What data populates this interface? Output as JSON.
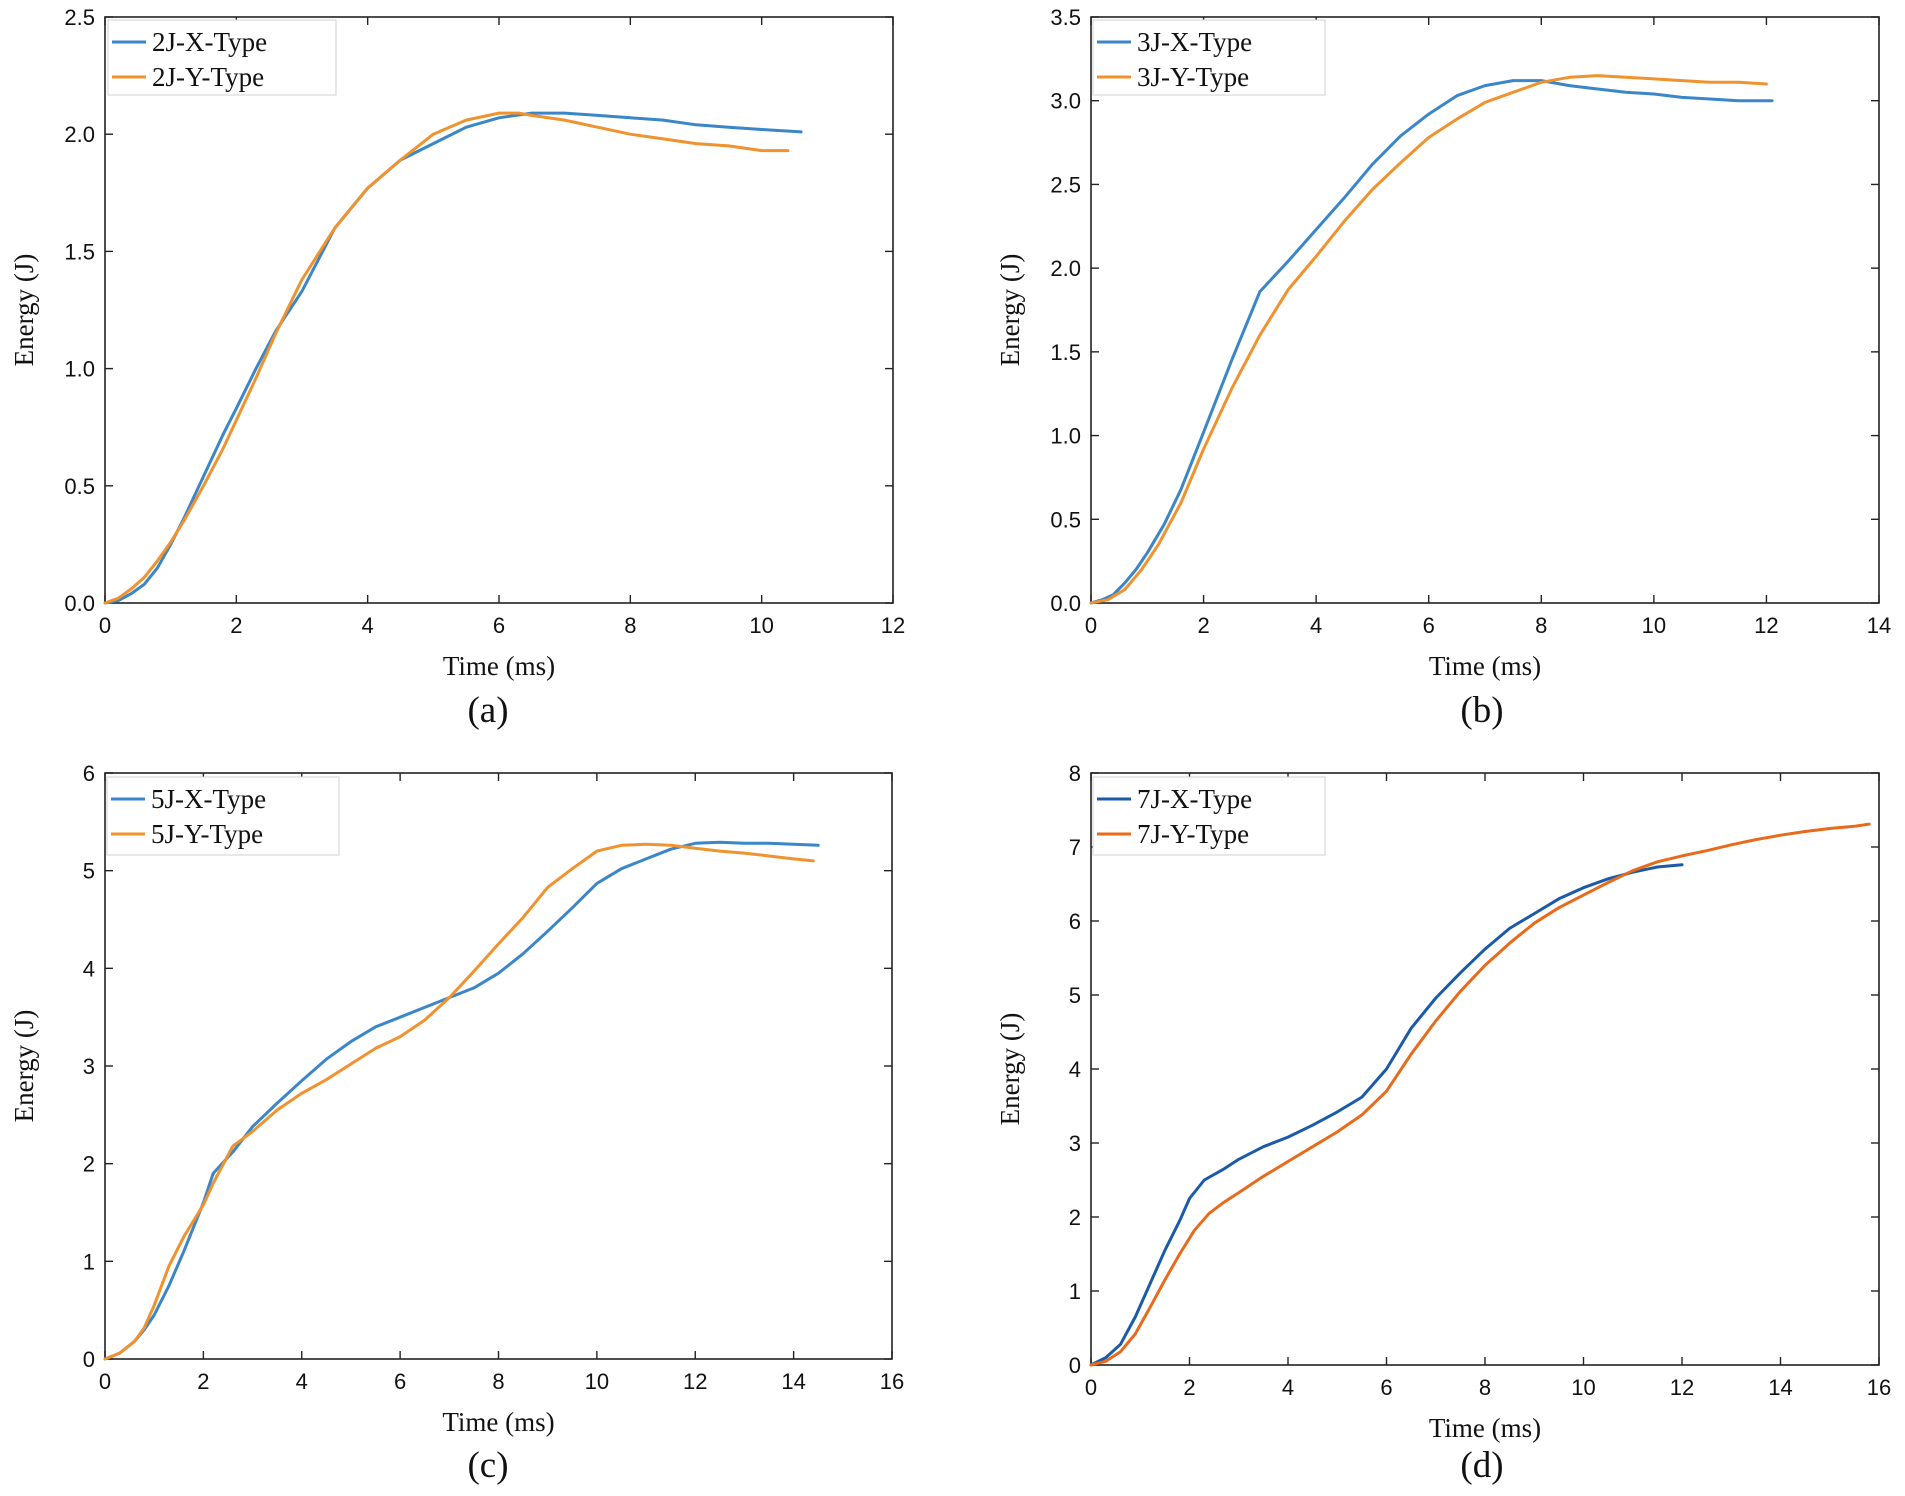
{
  "chart_data": [
    {
      "type": "line",
      "panel_label": "(a)",
      "xlabel": "Time (ms)",
      "ylabel": "Energy (J)",
      "xlim": [
        0,
        12
      ],
      "ylim": [
        0,
        2.5
      ],
      "xticks": [
        "0",
        "2",
        "4",
        "6",
        "8",
        "10",
        "12"
      ],
      "yticks": [
        "0.0",
        "0.5",
        "1.0",
        "1.5",
        "2.0",
        "2.5"
      ],
      "grid": false,
      "legend_position": "top-left",
      "series": [
        {
          "name": "2J-X-Type",
          "color": "#3a86c8",
          "x": [
            0,
            0.2,
            0.4,
            0.6,
            0.8,
            1.0,
            1.2,
            1.5,
            1.8,
            2.0,
            2.3,
            2.6,
            3.0,
            3.5,
            4.0,
            4.5,
            5.0,
            5.5,
            6.0,
            6.5,
            7.0,
            7.5,
            8.0,
            8.5,
            9.0,
            9.5,
            10.0,
            10.6
          ],
          "y": [
            0,
            0.01,
            0.04,
            0.08,
            0.15,
            0.25,
            0.36,
            0.54,
            0.72,
            0.83,
            1.0,
            1.16,
            1.33,
            1.6,
            1.77,
            1.89,
            1.96,
            2.03,
            2.07,
            2.09,
            2.09,
            2.08,
            2.07,
            2.06,
            2.04,
            2.03,
            2.02,
            2.01
          ]
        },
        {
          "name": "2J-Y-Type",
          "color": "#f0922e",
          "x": [
            0,
            0.2,
            0.4,
            0.6,
            0.8,
            1.0,
            1.2,
            1.5,
            1.8,
            2.0,
            2.3,
            2.6,
            3.0,
            3.5,
            4.0,
            4.5,
            5.0,
            5.5,
            6.0,
            6.3,
            6.5,
            7.0,
            7.5,
            8.0,
            8.5,
            9.0,
            9.5,
            10.0,
            10.4
          ],
          "y": [
            0,
            0.02,
            0.06,
            0.11,
            0.18,
            0.26,
            0.35,
            0.5,
            0.66,
            0.78,
            0.96,
            1.15,
            1.38,
            1.6,
            1.77,
            1.89,
            2.0,
            2.06,
            2.09,
            2.09,
            2.08,
            2.06,
            2.03,
            2.0,
            1.98,
            1.96,
            1.95,
            1.93,
            1.93
          ]
        }
      ]
    },
    {
      "type": "line",
      "panel_label": "(b)",
      "xlabel": "Time (ms)",
      "ylabel": "Energy (J)",
      "xlim": [
        0,
        14
      ],
      "ylim": [
        0,
        3.5
      ],
      "xticks": [
        "0",
        "2",
        "4",
        "6",
        "8",
        "10",
        "12",
        "14"
      ],
      "yticks": [
        "0.0",
        "0.5",
        "1.0",
        "1.5",
        "2.0",
        "2.5",
        "3.0",
        "3.5"
      ],
      "grid": false,
      "legend_position": "top-left",
      "series": [
        {
          "name": "3J-X-Type",
          "color": "#3a86c8",
          "x": [
            0,
            0.2,
            0.4,
            0.6,
            0.8,
            1.0,
            1.3,
            1.6,
            2.0,
            2.5,
            3.0,
            3.5,
            4.0,
            4.5,
            5.0,
            5.5,
            6.0,
            6.5,
            7.0,
            7.5,
            8.0,
            8.5,
            9.0,
            9.5,
            10.0,
            10.5,
            11.0,
            11.5,
            12.1
          ],
          "y": [
            0,
            0.02,
            0.05,
            0.12,
            0.2,
            0.3,
            0.47,
            0.68,
            1.02,
            1.45,
            1.86,
            2.04,
            2.23,
            2.42,
            2.62,
            2.79,
            2.92,
            3.03,
            3.09,
            3.12,
            3.12,
            3.09,
            3.07,
            3.05,
            3.04,
            3.02,
            3.01,
            3.0,
            3.0
          ]
        },
        {
          "name": "3J-Y-Type",
          "color": "#f0922e",
          "x": [
            0,
            0.3,
            0.6,
            0.9,
            1.2,
            1.6,
            2.0,
            2.5,
            3.0,
            3.5,
            4.0,
            4.5,
            5.0,
            5.5,
            6.0,
            6.5,
            7.0,
            7.5,
            8.0,
            8.5,
            9.0,
            9.5,
            10.0,
            10.5,
            11.0,
            11.5,
            12.0
          ],
          "y": [
            0,
            0.02,
            0.08,
            0.2,
            0.35,
            0.6,
            0.92,
            1.28,
            1.6,
            1.87,
            2.07,
            2.28,
            2.47,
            2.63,
            2.78,
            2.89,
            2.99,
            3.05,
            3.11,
            3.14,
            3.15,
            3.14,
            3.13,
            3.12,
            3.11,
            3.11,
            3.1
          ]
        }
      ]
    },
    {
      "type": "line",
      "panel_label": "(c)",
      "xlabel": "Time (ms)",
      "ylabel": "Energy (J)",
      "xlim": [
        0,
        16
      ],
      "ylim": [
        0,
        6
      ],
      "xticks": [
        "0",
        "2",
        "4",
        "6",
        "8",
        "10",
        "12",
        "14",
        "16"
      ],
      "yticks": [
        "0",
        "1",
        "2",
        "3",
        "4",
        "5",
        "6"
      ],
      "grid": false,
      "legend_position": "top-left",
      "series": [
        {
          "name": "5J-X-Type",
          "color": "#3a86c8",
          "x": [
            0,
            0.3,
            0.6,
            0.8,
            1.0,
            1.3,
            1.6,
            2.0,
            2.2,
            2.6,
            3.0,
            3.5,
            4.0,
            4.5,
            5.0,
            5.5,
            6.0,
            6.5,
            7.0,
            7.5,
            8.0,
            8.5,
            9.0,
            9.5,
            10.0,
            10.5,
            11.0,
            11.5,
            12.0,
            12.5,
            13.0,
            13.5,
            14.0,
            14.5
          ],
          "y": [
            0,
            0.06,
            0.18,
            0.3,
            0.45,
            0.75,
            1.1,
            1.6,
            1.9,
            2.12,
            2.38,
            2.62,
            2.85,
            3.07,
            3.25,
            3.4,
            3.5,
            3.6,
            3.7,
            3.8,
            3.95,
            4.15,
            4.38,
            4.62,
            4.87,
            5.02,
            5.12,
            5.22,
            5.28,
            5.29,
            5.28,
            5.28,
            5.27,
            5.26
          ]
        },
        {
          "name": "5J-Y-Type",
          "color": "#f0922e",
          "x": [
            0,
            0.3,
            0.6,
            0.8,
            1.0,
            1.3,
            1.6,
            2.0,
            2.2,
            2.6,
            3.0,
            3.5,
            4.0,
            4.5,
            5.0,
            5.5,
            6.0,
            6.5,
            7.0,
            7.5,
            8.0,
            8.5,
            9.0,
            9.5,
            10.0,
            10.5,
            11.0,
            11.5,
            12.0,
            12.5,
            13.0,
            13.5,
            14.0,
            14.4
          ],
          "y": [
            0,
            0.06,
            0.18,
            0.32,
            0.55,
            0.95,
            1.25,
            1.58,
            1.8,
            2.18,
            2.33,
            2.55,
            2.72,
            2.86,
            3.02,
            3.18,
            3.3,
            3.47,
            3.7,
            3.97,
            4.25,
            4.52,
            4.83,
            5.02,
            5.2,
            5.26,
            5.27,
            5.26,
            5.23,
            5.2,
            5.18,
            5.15,
            5.12,
            5.1
          ]
        }
      ]
    },
    {
      "type": "line",
      "panel_label": "(d)",
      "xlabel": "Time (ms)",
      "ylabel": "Energy (J)",
      "xlim": [
        0,
        16
      ],
      "ylim": [
        0,
        8
      ],
      "xticks": [
        "0",
        "2",
        "4",
        "6",
        "8",
        "10",
        "12",
        "14",
        "16"
      ],
      "yticks": [
        "0",
        "1",
        "2",
        "3",
        "4",
        "5",
        "6",
        "7",
        "8"
      ],
      "grid": false,
      "legend_position": "top-left",
      "series": [
        {
          "name": "7J-X-Type",
          "color": "#1a5aa8",
          "x": [
            0,
            0.3,
            0.6,
            0.9,
            1.2,
            1.5,
            1.8,
            2.0,
            2.3,
            2.7,
            3.0,
            3.5,
            4.0,
            4.5,
            5.0,
            5.5,
            6.0,
            6.5,
            7.0,
            7.5,
            8.0,
            8.5,
            9.0,
            9.5,
            10.0,
            10.5,
            11.0,
            11.5,
            12.0
          ],
          "y": [
            0,
            0.1,
            0.28,
            0.65,
            1.1,
            1.55,
            1.95,
            2.25,
            2.5,
            2.65,
            2.78,
            2.95,
            3.08,
            3.24,
            3.42,
            3.62,
            4.0,
            4.55,
            4.96,
            5.3,
            5.62,
            5.9,
            6.1,
            6.3,
            6.45,
            6.57,
            6.66,
            6.73,
            6.76
          ]
        },
        {
          "name": "7J-Y-Type",
          "color": "#e86a1a",
          "x": [
            0,
            0.3,
            0.6,
            0.9,
            1.2,
            1.5,
            1.8,
            2.1,
            2.4,
            2.7,
            3.0,
            3.5,
            4.0,
            4.5,
            5.0,
            5.5,
            6.0,
            6.5,
            7.0,
            7.5,
            8.0,
            8.5,
            9.0,
            9.5,
            10.0,
            10.5,
            11.0,
            11.5,
            12.0,
            12.5,
            13.0,
            13.5,
            14.0,
            14.5,
            15.0,
            15.5,
            15.8
          ],
          "y": [
            0,
            0.05,
            0.18,
            0.42,
            0.78,
            1.15,
            1.5,
            1.82,
            2.05,
            2.2,
            2.33,
            2.55,
            2.75,
            2.95,
            3.15,
            3.38,
            3.7,
            4.2,
            4.65,
            5.05,
            5.4,
            5.7,
            5.97,
            6.18,
            6.35,
            6.52,
            6.68,
            6.8,
            6.88,
            6.95,
            7.03,
            7.1,
            7.16,
            7.21,
            7.25,
            7.28,
            7.31
          ]
        }
      ]
    }
  ]
}
